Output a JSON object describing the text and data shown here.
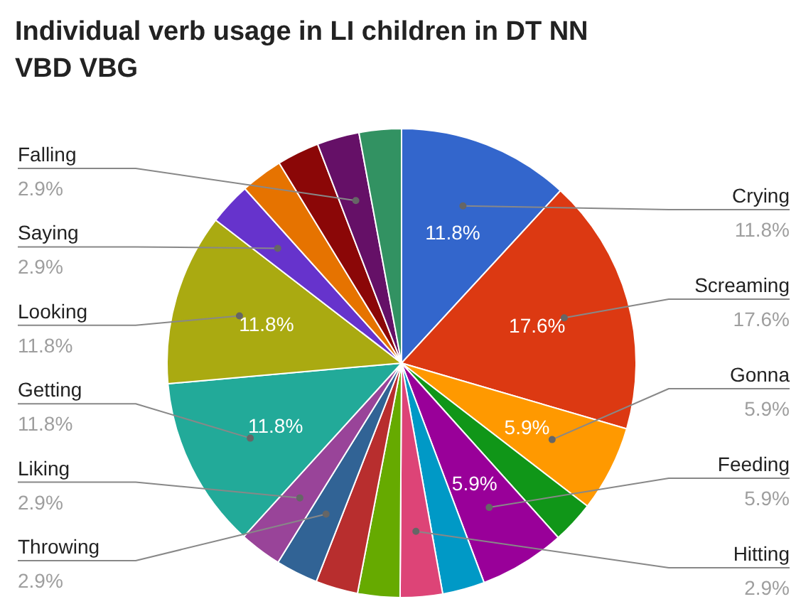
{
  "chart_data": {
    "type": "pie",
    "title": "Individual verb usage in LI children in DT NN VBD VBG",
    "categories": [
      "Crying",
      "Screaming",
      "Gonna",
      null,
      "Feeding",
      null,
      "Hitting",
      null,
      null,
      "Throwing",
      "Liking",
      "Getting",
      "Looking",
      "Saying",
      null,
      null,
      "Falling",
      null
    ],
    "values": [
      11.8,
      17.6,
      5.9,
      2.9,
      5.9,
      2.9,
      2.9,
      2.9,
      2.9,
      2.9,
      2.9,
      11.8,
      11.8,
      2.9,
      2.9,
      2.9,
      2.9,
      2.9
    ],
    "value_labels": [
      "11.8%",
      "17.6%",
      "5.9%",
      null,
      "5.9%",
      null,
      "2.9%",
      null,
      null,
      "2.9%",
      "2.9%",
      "11.8%",
      "11.8%",
      "2.9%",
      null,
      null,
      "2.9%",
      null
    ],
    "colors": [
      "#3366cc",
      "#dc3912",
      "#ff9900",
      "#109618",
      "#990099",
      "#0099c6",
      "#dd4477",
      "#66aa00",
      "#b82e2e",
      "#316395",
      "#994499",
      "#22aa99",
      "#aaaa11",
      "#6633cc",
      "#e67300",
      "#8b0707",
      "#651067",
      "#329262"
    ]
  }
}
